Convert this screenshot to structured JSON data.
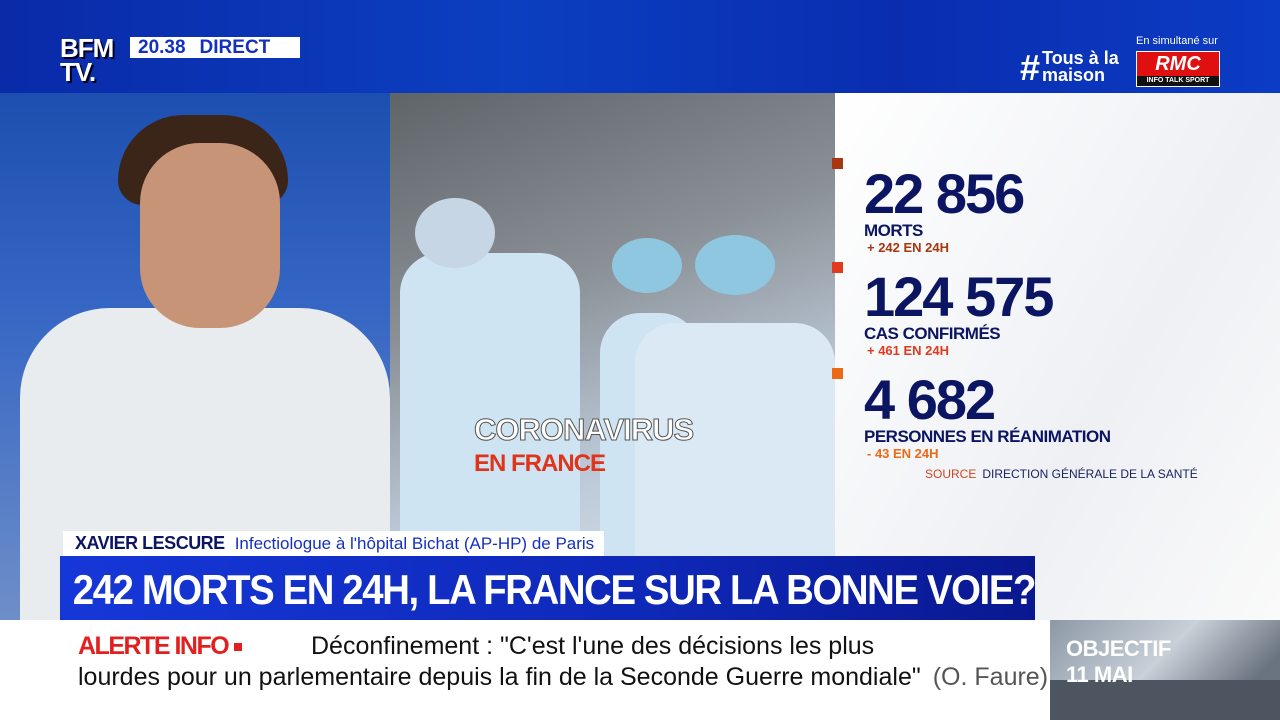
{
  "header": {
    "logo_line1": "BFM",
    "logo_line2": "TV.",
    "time": "20.38",
    "live_label": "DIRECT",
    "hashtag_symbol": "#",
    "hashtag_line1": "Tous à la",
    "hashtag_line2": "maison",
    "simulcast_label": "En simultané sur",
    "partner_logo": "RMC",
    "partner_tagline": "INFO TALK SPORT"
  },
  "photo_caption": {
    "line1": "CORONAVIRUS",
    "line2": "EN FRANCE"
  },
  "stats": [
    {
      "value": "22 856",
      "label": "MORTS",
      "delta": "+ 242 EN 24H",
      "color": "#a8360f"
    },
    {
      "value": "124 575",
      "label": "CAS CONFIRMÉS",
      "delta": "+ 461 EN 24H",
      "color": "#e23a1f"
    },
    {
      "value": "4 682",
      "label": "PERSONNES EN RÉANIMATION",
      "delta": "- 43 EN 24H",
      "color": "#ec6a16"
    }
  ],
  "source": {
    "label": "SOURCE",
    "text": "DIRECTION GÉNÉRALE DE LA SANTÉ"
  },
  "guest": {
    "name": "XAVIER LESCURE",
    "title": "Infectiologue à l'hôpital Bichat (AP-HP) de Paris"
  },
  "headline": "242 MORTS EN 24H, LA FRANCE SUR LA BONNE VOIE?",
  "ticker": {
    "label": "ALERTE INFO",
    "line1": "Déconfinement : \"C'est l'une des décisions les plus",
    "line2": "lourdes pour un parlementaire depuis la fin de la Seconde Guerre mondiale\"",
    "attribution": "(O. Faure)"
  },
  "promo": {
    "line1": "OBJECTIF",
    "line2": "11 MAI"
  }
}
